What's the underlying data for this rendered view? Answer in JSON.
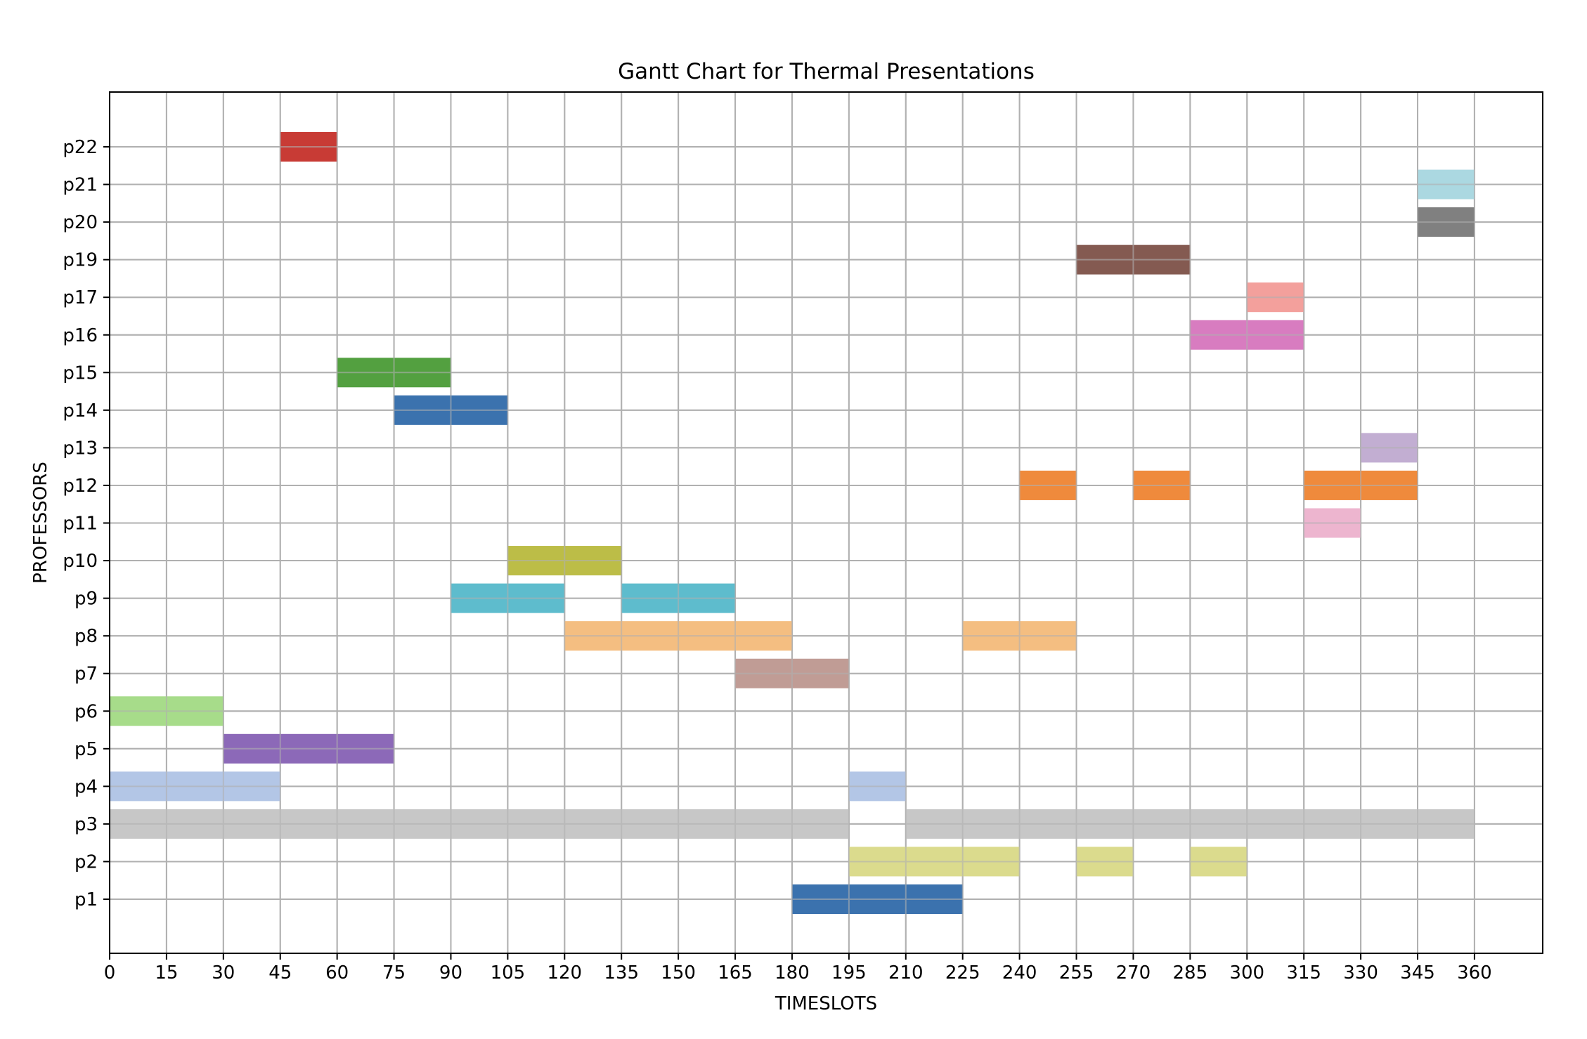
{
  "chart_data": {
    "type": "gantt",
    "title": "Gantt Chart for Thermal Presentations",
    "xlabel": "TIMESLOTS",
    "ylabel": "PROFESSORS",
    "xlim": [
      0,
      378
    ],
    "x_ticks": [
      0,
      15,
      30,
      45,
      60,
      75,
      90,
      105,
      120,
      135,
      150,
      165,
      180,
      195,
      210,
      225,
      240,
      255,
      270,
      285,
      300,
      315,
      330,
      345,
      360
    ],
    "grid": true,
    "categories": [
      "p1",
      "p2",
      "p3",
      "p4",
      "p5",
      "p6",
      "p7",
      "p8",
      "p9",
      "p10",
      "p11",
      "p12",
      "p13",
      "p14",
      "p15",
      "p16",
      "p17",
      "p19",
      "p20",
      "p21",
      "p22"
    ],
    "series": [
      {
        "professor": "p1",
        "color": "#3b72ae",
        "intervals": [
          [
            180,
            225
          ]
        ]
      },
      {
        "professor": "p2",
        "color": "#dbdb8d",
        "intervals": [
          [
            195,
            240
          ],
          [
            255,
            270
          ],
          [
            285,
            300
          ]
        ]
      },
      {
        "professor": "p3",
        "color": "#c7c7c7",
        "intervals": [
          [
            0,
            195
          ],
          [
            210,
            360
          ]
        ]
      },
      {
        "professor": "p4",
        "color": "#b3c6e6",
        "intervals": [
          [
            0,
            45
          ],
          [
            195,
            210
          ]
        ]
      },
      {
        "professor": "p5",
        "color": "#8c69b8",
        "intervals": [
          [
            30,
            75
          ]
        ]
      },
      {
        "professor": "p6",
        "color": "#a7dc8a",
        "intervals": [
          [
            0,
            30
          ]
        ]
      },
      {
        "professor": "p7",
        "color": "#c09c95",
        "intervals": [
          [
            165,
            195
          ]
        ]
      },
      {
        "professor": "p8",
        "color": "#f4be81",
        "intervals": [
          [
            120,
            180
          ],
          [
            225,
            255
          ]
        ]
      },
      {
        "professor": "p9",
        "color": "#5ebccd",
        "intervals": [
          [
            90,
            120
          ],
          [
            135,
            165
          ]
        ]
      },
      {
        "professor": "p10",
        "color": "#bcbd47",
        "intervals": [
          [
            105,
            135
          ]
        ]
      },
      {
        "professor": "p11",
        "color": "#edb5cf",
        "intervals": [
          [
            315,
            330
          ]
        ]
      },
      {
        "professor": "p12",
        "color": "#ef8a3c",
        "intervals": [
          [
            240,
            255
          ],
          [
            270,
            285
          ],
          [
            315,
            345
          ]
        ]
      },
      {
        "professor": "p13",
        "color": "#c2aed2",
        "intervals": [
          [
            330,
            345
          ]
        ]
      },
      {
        "professor": "p14",
        "color": "#3b72ae",
        "intervals": [
          [
            75,
            105
          ]
        ]
      },
      {
        "professor": "p15",
        "color": "#53a040",
        "intervals": [
          [
            60,
            90
          ]
        ]
      },
      {
        "professor": "p16",
        "color": "#d87cc0",
        "intervals": [
          [
            285,
            315
          ]
        ]
      },
      {
        "professor": "p17",
        "color": "#f3a09c",
        "intervals": [
          [
            300,
            315
          ]
        ]
      },
      {
        "professor": "p19",
        "color": "#845a51",
        "intervals": [
          [
            255,
            285
          ]
        ]
      },
      {
        "professor": "p20",
        "color": "#808080",
        "intervals": [
          [
            345,
            360
          ]
        ]
      },
      {
        "professor": "p21",
        "color": "#abd8e1",
        "intervals": [
          [
            345,
            360
          ]
        ]
      },
      {
        "professor": "p22",
        "color": "#c83b35",
        "intervals": [
          [
            45,
            60
          ]
        ]
      }
    ]
  }
}
